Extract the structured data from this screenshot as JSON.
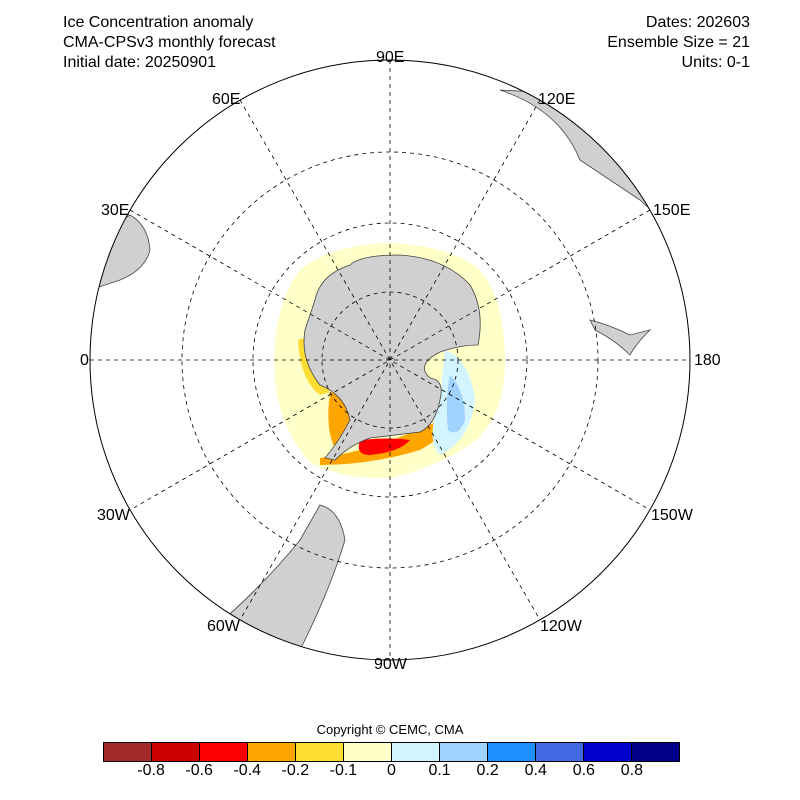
{
  "header": {
    "title": "Ice Concentration anomaly",
    "model": "CMA-CPSv3 monthly forecast",
    "initial_date": "Initial date: 20250901",
    "dates": "Dates: 202603",
    "ensemble": "Ensemble Size = 21",
    "units": "Units: 0-1"
  },
  "map": {
    "projection": "South polar stereographic",
    "longitude_labels": {
      "e90": "90E",
      "e120": "120E",
      "e150": "150E",
      "e180": "180",
      "w150": "150W",
      "w120": "120W",
      "w90": "90W",
      "w60": "60W",
      "w30": "30W",
      "zero": "0",
      "e30": "30E",
      "e60": "60E"
    },
    "land_color": "#d0d0d0"
  },
  "colorbar": {
    "copyright": "Copyright © CEMC, CMA",
    "colors": [
      "#a52a2a",
      "#cd0000",
      "#ff0000",
      "#ffa500",
      "#ffdd33",
      "#ffffc8",
      "#d2f5ff",
      "#a0d2ff",
      "#1e90ff",
      "#4169e1",
      "#0000cd",
      "#00008b"
    ],
    "labels": [
      "-0.8",
      "-0.6",
      "-0.4",
      "-0.2",
      "-0.1",
      "0",
      "0.1",
      "0.2",
      "0.4",
      "0.6",
      "0.8"
    ]
  }
}
